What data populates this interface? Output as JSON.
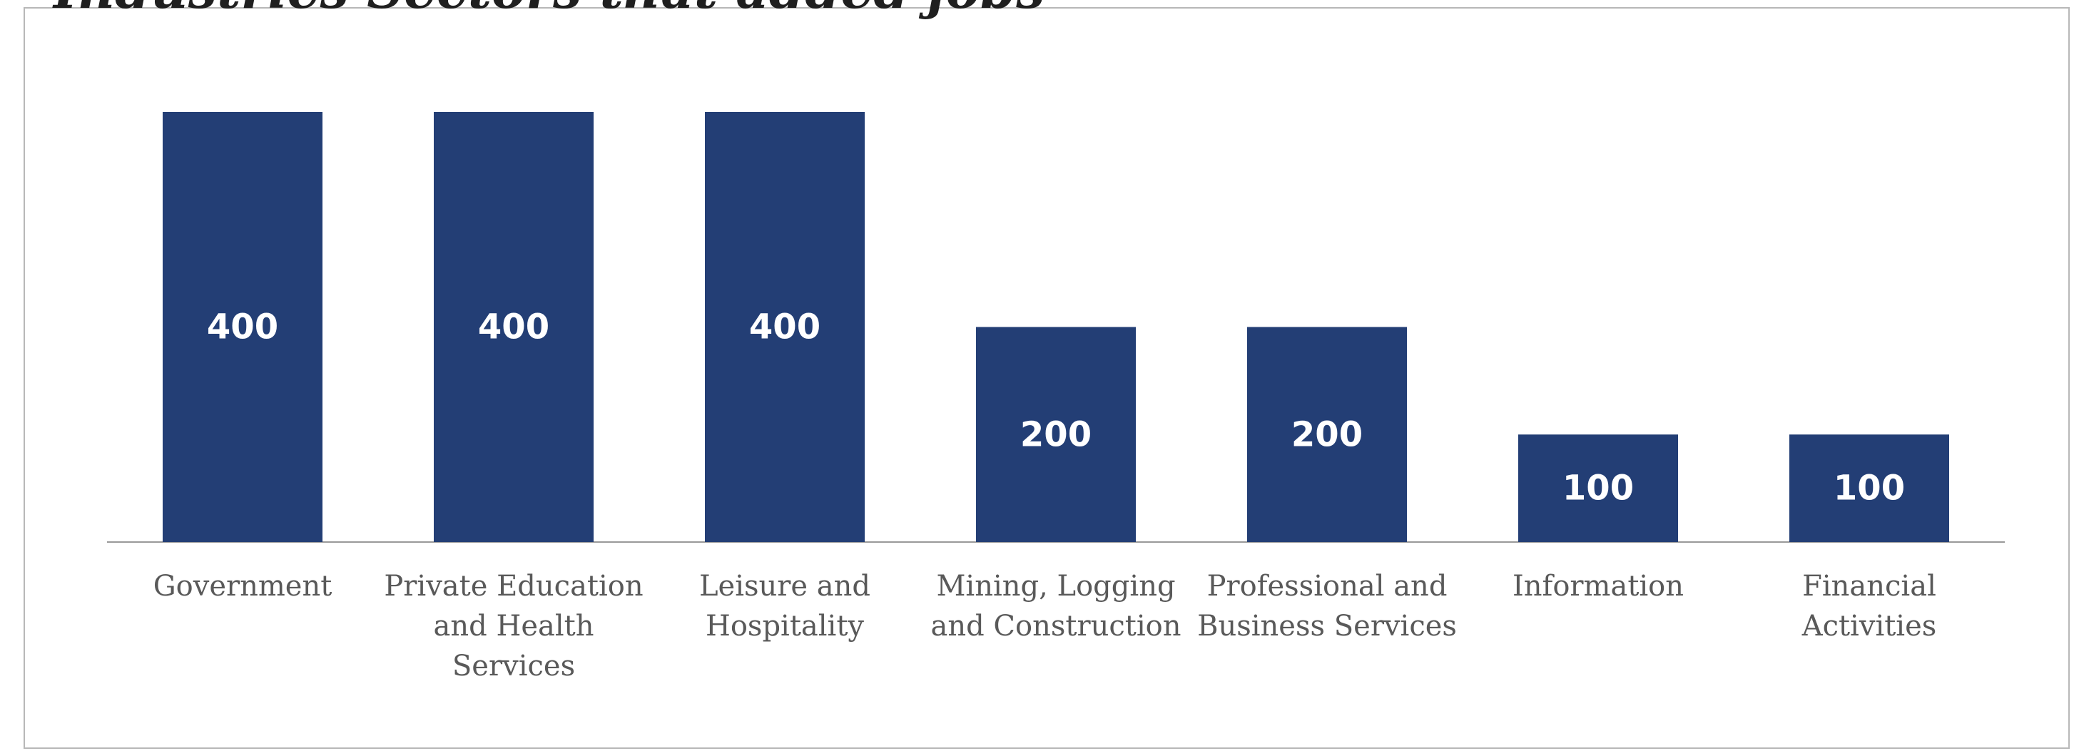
{
  "chart_data": {
    "type": "bar",
    "title": "Industries Sectors that added jobs",
    "categories": [
      [
        "Government"
      ],
      [
        "Private Education",
        "and Health",
        "Services"
      ],
      [
        "Leisure and",
        "Hospitality"
      ],
      [
        "Mining, Logging",
        "and Construction"
      ],
      [
        "Professional and",
        "Business Services"
      ],
      [
        "Information"
      ],
      [
        "Financial",
        "Activities"
      ]
    ],
    "values": [
      400,
      400,
      400,
      200,
      200,
      100,
      100
    ],
    "ylim": [
      0,
      400
    ],
    "xlabel": "",
    "ylabel": "",
    "grid": false,
    "legend": "none"
  },
  "colors": {
    "bar": "#233e75",
    "value_label": "#ffffff",
    "category_label": "#595959",
    "axis": "#9a9a9a"
  }
}
